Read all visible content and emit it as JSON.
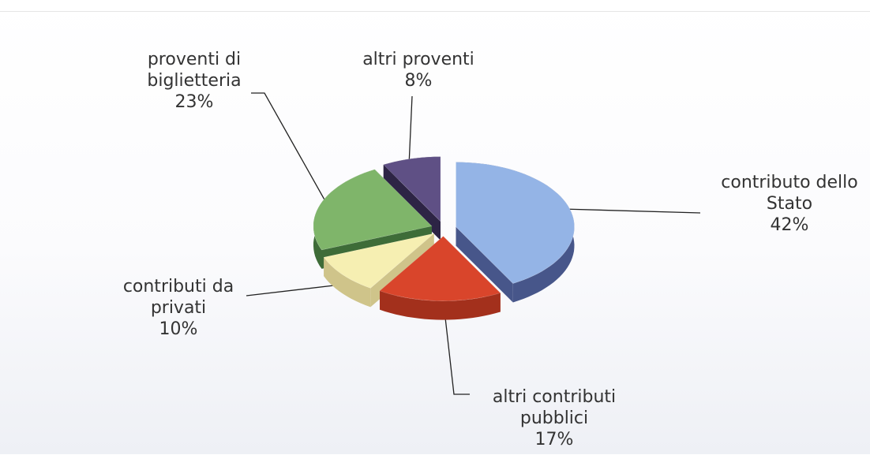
{
  "chart_data": {
    "type": "pie",
    "categories": [
      "contributo dello Stato",
      "altri contributi pubblici",
      "contributi da privati",
      "proventi di biglietteria",
      "altri proventi"
    ],
    "values": [
      42,
      17,
      10,
      23,
      8
    ],
    "value_labels": [
      "42%",
      "17%",
      "10%",
      "23%",
      "8%"
    ],
    "colors": [
      "#94b4e6",
      "#d9452b",
      "#f6efb2",
      "#7fb56a",
      "#5f5085"
    ],
    "side_colors": [
      "#47568a",
      "#a3301c",
      "#cfc48a",
      "#3e6c38",
      "#2d2445"
    ],
    "start_angle": -90,
    "exploded": true,
    "three_d": true
  }
}
